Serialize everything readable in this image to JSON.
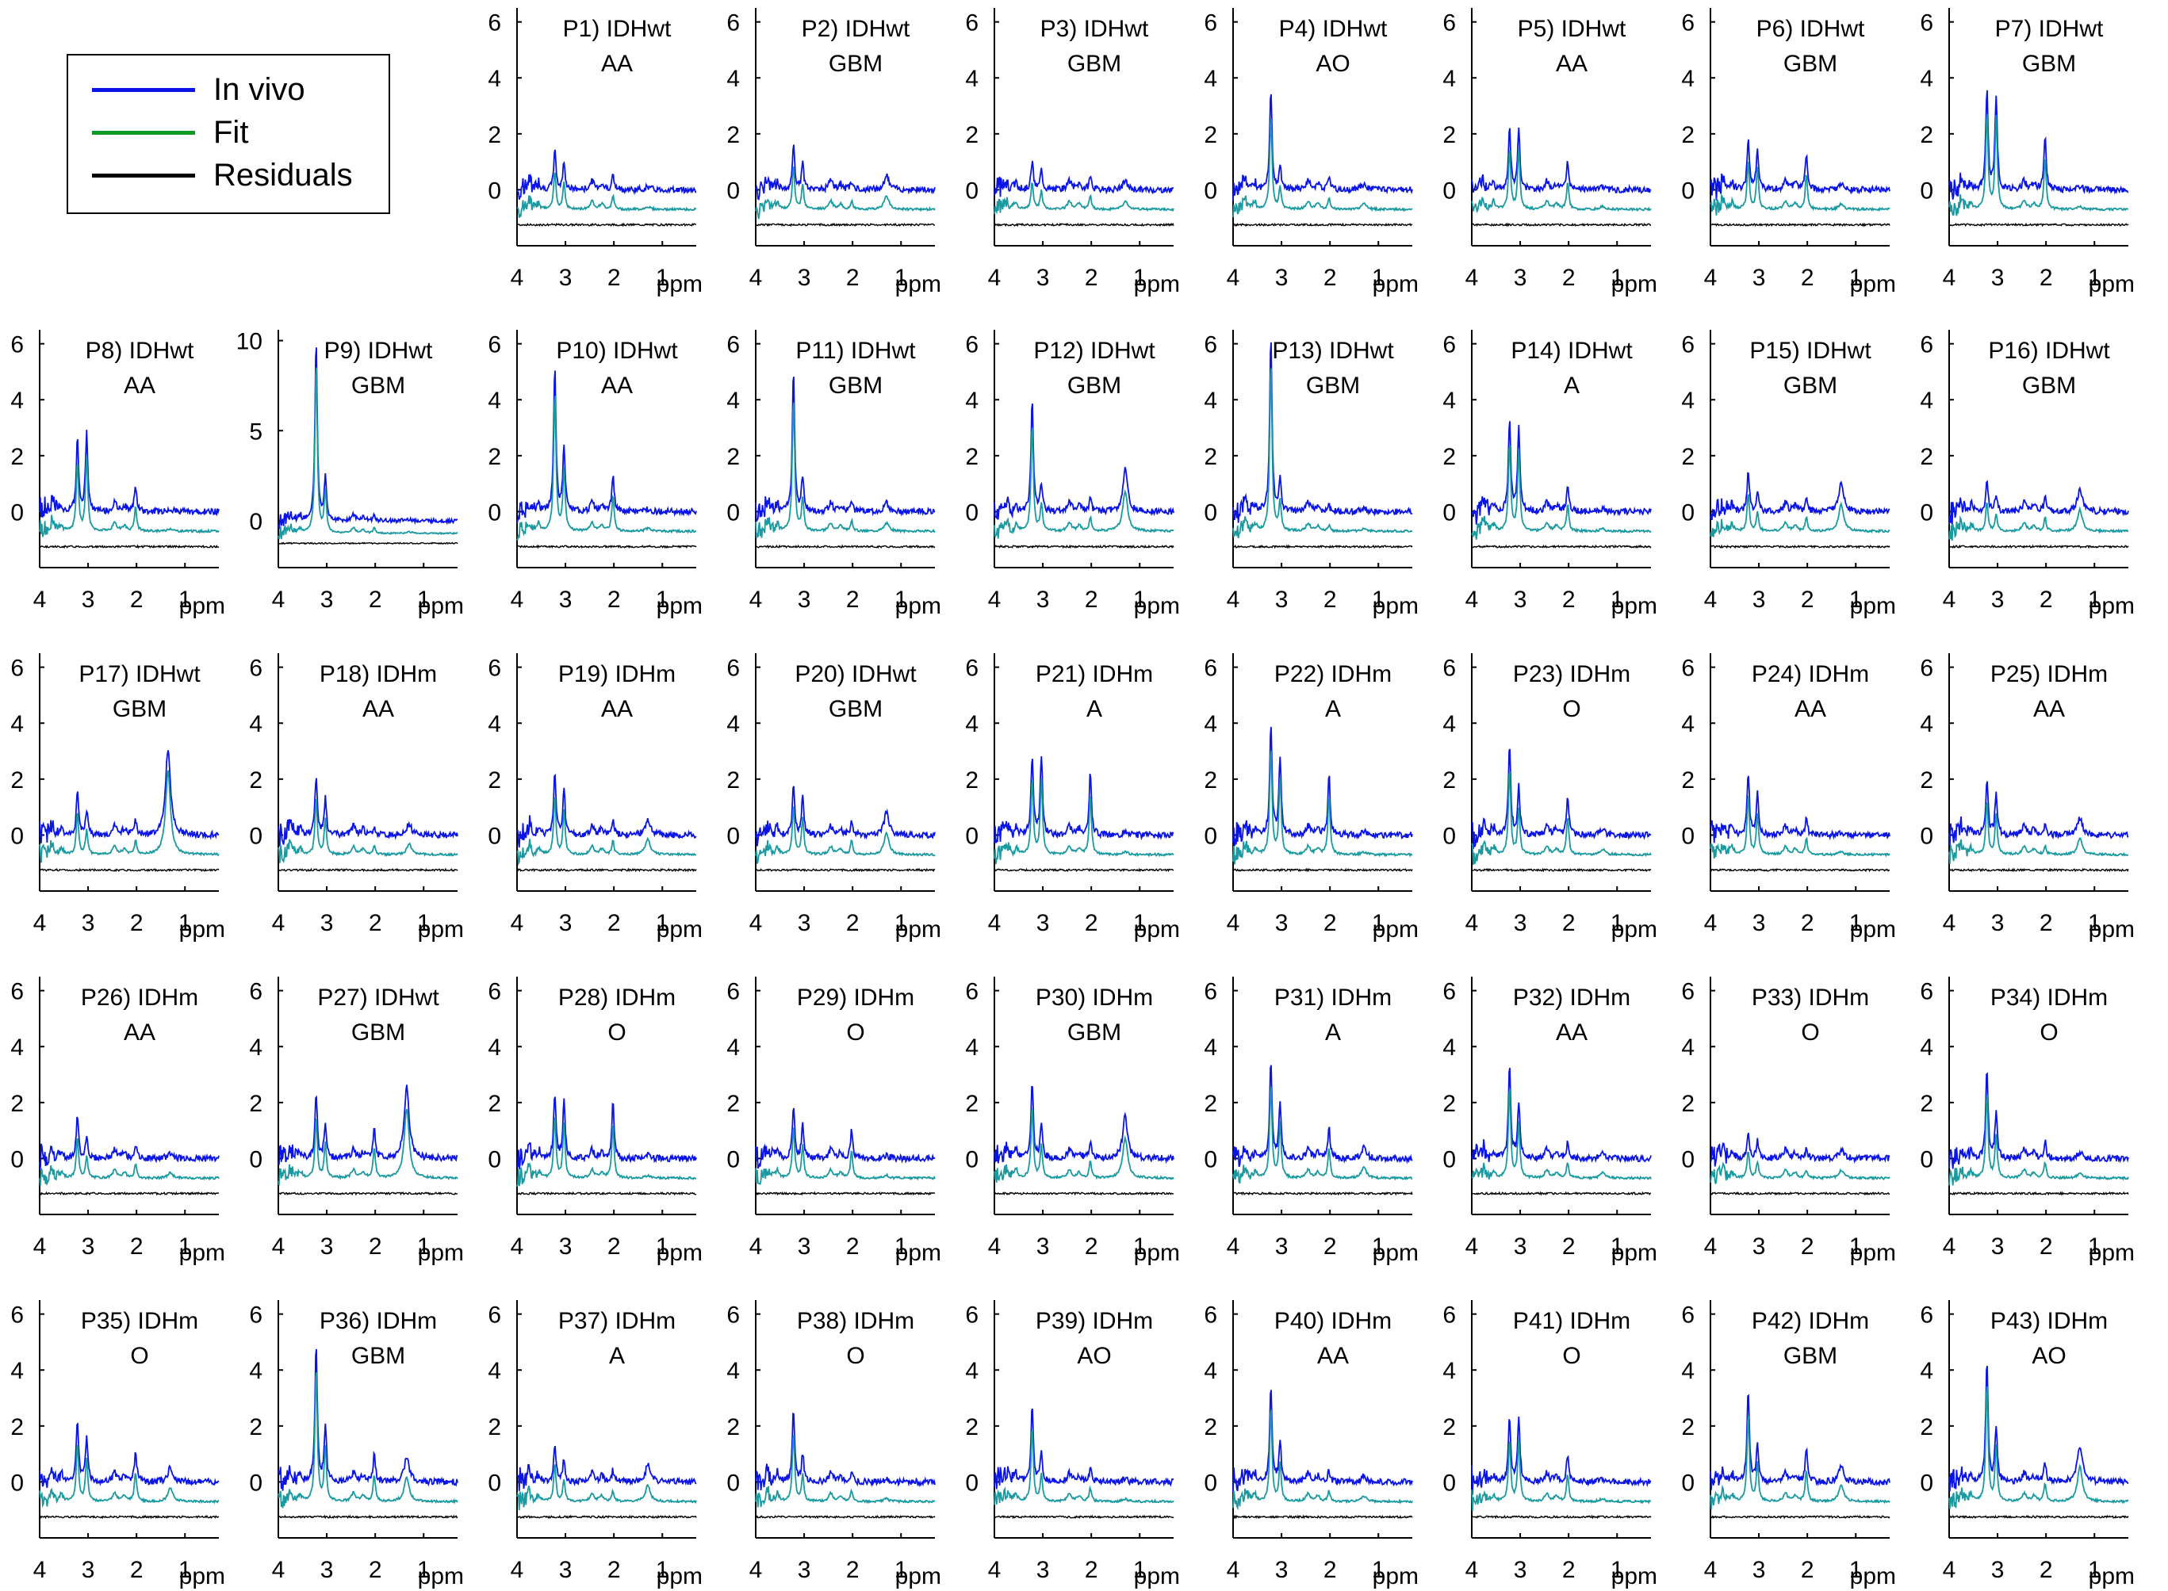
{
  "legend": {
    "invivo": "In vivo",
    "fit": "Fit",
    "residuals": "Residuals"
  },
  "colors": {
    "invivo": "#0a14e6",
    "fit": "#109a28",
    "overlap": "#1a9aa0",
    "residuals": "#000000"
  },
  "chart_data": {
    "type": "line",
    "x_unit": "ppm",
    "xlim": [
      4,
      0.3
    ],
    "xticks": [
      4,
      3,
      2,
      1
    ],
    "ylim_default": [
      -2.0,
      6.5
    ],
    "yticks_default": [
      0,
      2,
      4,
      6
    ],
    "ylim_p9": [
      -2.6,
      10.6
    ],
    "yticks_p9": [
      0,
      5,
      10
    ],
    "series": [
      "In vivo",
      "Fit",
      "Residuals"
    ],
    "panels": [
      {
        "id": "P1",
        "group": "IDHwt",
        "grade": "AA",
        "peaks": [
          [
            3.22,
            1.4
          ],
          [
            3.03,
            1.0
          ],
          [
            2.02,
            0.5
          ],
          [
            1.3,
            0.1
          ]
        ]
      },
      {
        "id": "P2",
        "group": "IDHwt",
        "grade": "GBM",
        "peaks": [
          [
            3.22,
            1.6
          ],
          [
            3.03,
            0.9
          ],
          [
            2.02,
            0.3
          ],
          [
            1.3,
            0.5
          ]
        ]
      },
      {
        "id": "P3",
        "group": "IDHwt",
        "grade": "GBM",
        "peaks": [
          [
            3.22,
            1.0
          ],
          [
            3.03,
            0.7
          ],
          [
            2.02,
            0.5
          ],
          [
            1.3,
            0.3
          ]
        ]
      },
      {
        "id": "P4",
        "group": "IDHwt",
        "grade": "AO",
        "peaks": [
          [
            3.22,
            3.5
          ],
          [
            3.03,
            0.8
          ],
          [
            2.02,
            0.4
          ],
          [
            1.3,
            0.2
          ]
        ]
      },
      {
        "id": "P5",
        "group": "IDHwt",
        "grade": "AA",
        "peaks": [
          [
            3.22,
            2.2
          ],
          [
            3.03,
            2.2
          ],
          [
            2.02,
            1.0
          ],
          [
            1.3,
            0.1
          ]
        ]
      },
      {
        "id": "P6",
        "group": "IDHwt",
        "grade": "GBM",
        "peaks": [
          [
            3.22,
            1.8
          ],
          [
            3.03,
            1.5
          ],
          [
            2.02,
            1.3
          ],
          [
            1.3,
            0.2
          ]
        ]
      },
      {
        "id": "P7",
        "group": "IDHwt",
        "grade": "GBM",
        "peaks": [
          [
            3.22,
            3.6
          ],
          [
            3.03,
            3.4
          ],
          [
            2.02,
            1.9
          ],
          [
            1.3,
            0.1
          ]
        ]
      },
      {
        "id": "P8",
        "group": "IDHwt",
        "grade": "AA",
        "peaks": [
          [
            3.22,
            2.6
          ],
          [
            3.03,
            2.8
          ],
          [
            2.02,
            0.9
          ],
          [
            1.3,
            0.1
          ]
        ]
      },
      {
        "id": "P9",
        "group": "IDHwt",
        "grade": "GBM",
        "peaks": [
          [
            3.22,
            10.0
          ],
          [
            3.03,
            2.4
          ],
          [
            2.02,
            0.3
          ],
          [
            1.3,
            0.1
          ]
        ]
      },
      {
        "id": "P10",
        "group": "IDHwt",
        "grade": "AA",
        "peaks": [
          [
            3.22,
            5.2
          ],
          [
            3.03,
            2.3
          ],
          [
            2.02,
            1.3
          ],
          [
            1.3,
            0.1
          ]
        ]
      },
      {
        "id": "P11",
        "group": "IDHwt",
        "grade": "GBM",
        "peaks": [
          [
            3.22,
            5.0
          ],
          [
            3.03,
            1.2
          ],
          [
            2.02,
            0.4
          ],
          [
            1.3,
            0.3
          ]
        ]
      },
      {
        "id": "P12",
        "group": "IDHwt",
        "grade": "GBM",
        "peaks": [
          [
            3.22,
            4.0
          ],
          [
            3.03,
            1.0
          ],
          [
            2.02,
            0.5
          ],
          [
            1.3,
            1.5
          ]
        ]
      },
      {
        "id": "P13",
        "group": "IDHwt",
        "grade": "GBM",
        "peaks": [
          [
            3.22,
            6.3
          ],
          [
            3.03,
            1.1
          ],
          [
            2.02,
            0.2
          ],
          [
            1.3,
            0.1
          ]
        ]
      },
      {
        "id": "P14",
        "group": "IDHwt",
        "grade": "A",
        "peaks": [
          [
            3.22,
            3.3
          ],
          [
            3.03,
            3.0
          ],
          [
            2.02,
            1.0
          ],
          [
            1.3,
            0.1
          ]
        ]
      },
      {
        "id": "P15",
        "group": "IDHwt",
        "grade": "GBM",
        "peaks": [
          [
            3.22,
            1.4
          ],
          [
            3.03,
            0.7
          ],
          [
            2.02,
            0.5
          ],
          [
            1.3,
            1.0
          ]
        ]
      },
      {
        "id": "P16",
        "group": "IDHwt",
        "grade": "GBM",
        "peaks": [
          [
            3.22,
            1.1
          ],
          [
            3.03,
            0.6
          ],
          [
            2.02,
            0.5
          ],
          [
            1.3,
            0.8
          ]
        ]
      },
      {
        "id": "P17",
        "group": "IDHwt",
        "grade": "GBM",
        "peaks": [
          [
            3.22,
            1.6
          ],
          [
            3.03,
            0.9
          ],
          [
            2.02,
            0.5
          ],
          [
            1.35,
            3.1
          ]
        ]
      },
      {
        "id": "P18",
        "group": "IDHm",
        "grade": "AA",
        "peaks": [
          [
            3.22,
            2.1
          ],
          [
            3.03,
            1.3
          ],
          [
            2.02,
            0.3
          ],
          [
            1.3,
            0.4
          ]
        ]
      },
      {
        "id": "P19",
        "group": "IDHm",
        "grade": "AA",
        "peaks": [
          [
            3.22,
            2.2
          ],
          [
            3.03,
            1.6
          ],
          [
            2.02,
            0.5
          ],
          [
            1.3,
            0.6
          ]
        ]
      },
      {
        "id": "P20",
        "group": "IDHwt",
        "grade": "GBM",
        "peaks": [
          [
            3.22,
            1.8
          ],
          [
            3.03,
            1.4
          ],
          [
            2.02,
            0.5
          ],
          [
            1.3,
            0.8
          ]
        ]
      },
      {
        "id": "P21",
        "group": "IDHm",
        "grade": "A",
        "peaks": [
          [
            3.22,
            2.8
          ],
          [
            3.03,
            2.8
          ],
          [
            2.02,
            2.2
          ],
          [
            1.3,
            0.1
          ]
        ]
      },
      {
        "id": "P22",
        "group": "IDHm",
        "grade": "A",
        "peaks": [
          [
            3.22,
            4.0
          ],
          [
            3.03,
            2.8
          ],
          [
            2.02,
            2.2
          ],
          [
            1.3,
            0.1
          ]
        ]
      },
      {
        "id": "P23",
        "group": "IDHm",
        "grade": "O",
        "peaks": [
          [
            3.22,
            3.2
          ],
          [
            3.03,
            1.7
          ],
          [
            2.02,
            1.4
          ],
          [
            1.3,
            0.2
          ]
        ]
      },
      {
        "id": "P24",
        "group": "IDHm",
        "grade": "AA",
        "peaks": [
          [
            3.22,
            2.2
          ],
          [
            3.03,
            1.5
          ],
          [
            2.02,
            0.6
          ],
          [
            1.3,
            0.1
          ]
        ]
      },
      {
        "id": "P25",
        "group": "IDHm",
        "grade": "AA",
        "peaks": [
          [
            3.22,
            2.0
          ],
          [
            3.03,
            1.5
          ],
          [
            2.02,
            0.3
          ],
          [
            1.3,
            0.6
          ]
        ]
      },
      {
        "id": "P26",
        "group": "IDHm",
        "grade": "AA",
        "peaks": [
          [
            3.22,
            1.5
          ],
          [
            3.03,
            0.8
          ],
          [
            2.02,
            0.5
          ],
          [
            1.3,
            0.2
          ]
        ]
      },
      {
        "id": "P27",
        "group": "IDHwt",
        "grade": "GBM",
        "peaks": [
          [
            3.22,
            2.3
          ],
          [
            3.03,
            1.3
          ],
          [
            2.02,
            1.1
          ],
          [
            1.35,
            2.6
          ]
        ]
      },
      {
        "id": "P28",
        "group": "IDHm",
        "grade": "O",
        "peaks": [
          [
            3.22,
            2.3
          ],
          [
            3.03,
            2.0
          ],
          [
            2.02,
            2.0
          ],
          [
            1.3,
            0.1
          ]
        ]
      },
      {
        "id": "P29",
        "group": "IDHm",
        "grade": "O",
        "peaks": [
          [
            3.22,
            1.9
          ],
          [
            3.03,
            1.2
          ],
          [
            2.02,
            1.0
          ],
          [
            1.3,
            0.1
          ]
        ]
      },
      {
        "id": "P30",
        "group": "IDHm",
        "grade": "GBM",
        "peaks": [
          [
            3.22,
            2.7
          ],
          [
            3.03,
            1.2
          ],
          [
            2.02,
            0.6
          ],
          [
            1.3,
            1.5
          ]
        ]
      },
      {
        "id": "P31",
        "group": "IDHm",
        "grade": "A",
        "peaks": [
          [
            3.22,
            3.5
          ],
          [
            3.03,
            2.0
          ],
          [
            2.02,
            1.1
          ],
          [
            1.3,
            0.4
          ]
        ]
      },
      {
        "id": "P32",
        "group": "IDHm",
        "grade": "AA",
        "peaks": [
          [
            3.22,
            3.4
          ],
          [
            3.03,
            2.0
          ],
          [
            2.02,
            0.6
          ],
          [
            1.3,
            0.2
          ]
        ]
      },
      {
        "id": "P33",
        "group": "IDHm",
        "grade": "O",
        "peaks": [
          [
            3.22,
            1.0
          ],
          [
            3.03,
            0.6
          ],
          [
            2.02,
            0.3
          ],
          [
            1.3,
            0.3
          ]
        ]
      },
      {
        "id": "P34",
        "group": "IDHm",
        "grade": "O",
        "peaks": [
          [
            3.22,
            3.2
          ],
          [
            3.03,
            1.6
          ],
          [
            2.02,
            0.6
          ],
          [
            1.3,
            0.2
          ]
        ]
      },
      {
        "id": "P35",
        "group": "IDHm",
        "grade": "O",
        "peaks": [
          [
            3.22,
            2.2
          ],
          [
            3.03,
            1.6
          ],
          [
            2.02,
            1.1
          ],
          [
            1.3,
            0.5
          ]
        ]
      },
      {
        "id": "P36",
        "group": "IDHm",
        "grade": "GBM",
        "peaks": [
          [
            3.22,
            5.0
          ],
          [
            3.03,
            2.0
          ],
          [
            2.02,
            1.0
          ],
          [
            1.35,
            0.9
          ]
        ]
      },
      {
        "id": "P37",
        "group": "IDHm",
        "grade": "A",
        "peaks": [
          [
            3.22,
            1.4
          ],
          [
            3.03,
            0.8
          ],
          [
            2.02,
            0.4
          ],
          [
            1.3,
            0.6
          ]
        ]
      },
      {
        "id": "P38",
        "group": "IDHm",
        "grade": "O",
        "peaks": [
          [
            3.22,
            2.6
          ],
          [
            3.03,
            1.0
          ],
          [
            2.02,
            0.4
          ],
          [
            1.3,
            0.1
          ]
        ]
      },
      {
        "id": "P39",
        "group": "IDHm",
        "grade": "AO",
        "peaks": [
          [
            3.22,
            2.8
          ],
          [
            3.03,
            1.0
          ],
          [
            2.02,
            0.5
          ],
          [
            1.3,
            0.1
          ]
        ]
      },
      {
        "id": "P40",
        "group": "IDHm",
        "grade": "AA",
        "peaks": [
          [
            3.22,
            3.5
          ],
          [
            3.03,
            1.4
          ],
          [
            2.02,
            0.4
          ],
          [
            1.3,
            0.2
          ]
        ]
      },
      {
        "id": "P41",
        "group": "IDHm",
        "grade": "O",
        "peaks": [
          [
            3.22,
            2.3
          ],
          [
            3.03,
            2.3
          ],
          [
            2.02,
            1.0
          ],
          [
            1.3,
            0.1
          ]
        ]
      },
      {
        "id": "P42",
        "group": "IDHm",
        "grade": "GBM",
        "peaks": [
          [
            3.22,
            3.3
          ],
          [
            3.03,
            1.4
          ],
          [
            2.02,
            1.2
          ],
          [
            1.3,
            0.6
          ]
        ]
      },
      {
        "id": "P43",
        "group": "IDHm",
        "grade": "AO",
        "peaks": [
          [
            3.22,
            4.4
          ],
          [
            3.03,
            2.0
          ],
          [
            2.02,
            0.7
          ],
          [
            1.3,
            1.3
          ]
        ]
      }
    ]
  }
}
